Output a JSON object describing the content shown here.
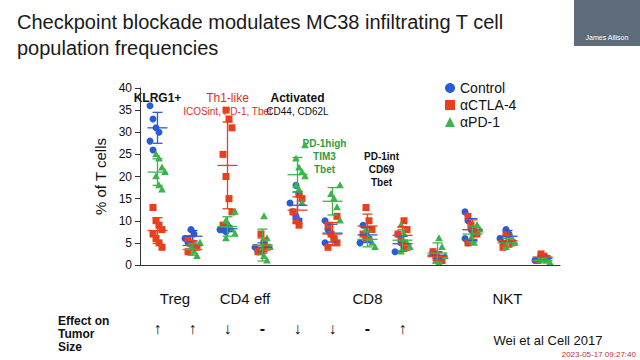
{
  "chart_data": {
    "type": "scatter",
    "title": "Checkpoint blockade modulates MC38 infiltrating T cell\npopulation frequencies",
    "y_label": "% of T cells",
    "categories": [
      null,
      null,
      null,
      null,
      null,
      null,
      null,
      null,
      null,
      null,
      null,
      null
    ],
    "ylim": [
      0,
      40
    ],
    "yticks": [
      0,
      5,
      10,
      15,
      20,
      25,
      30,
      35,
      40
    ],
    "grid": false,
    "legend": "top-right",
    "groups": [
      {
        "label": "Treg",
        "columns": [
          0,
          1
        ]
      },
      {
        "label": "CD4 eff",
        "columns": [
          2,
          3
        ]
      },
      {
        "label": "CD8",
        "columns": [
          4,
          5,
          6,
          7,
          8
        ]
      },
      {
        "label": "NKT",
        "columns": [
          9,
          10,
          11
        ]
      }
    ],
    "annotations": [
      {
        "text": "KLRG1+",
        "color": "#111111",
        "column": 0
      },
      {
        "text": "Th1-like",
        "color": "#e0301e",
        "column": 2
      },
      {
        "text": "ICOSint, PD-1, Tbet",
        "color": "#e0301e",
        "column": 2
      },
      {
        "text": "Activated",
        "color": "#111111",
        "column": 4
      },
      {
        "text": "CD44, CD62L",
        "color": "#111111",
        "column": 4
      },
      {
        "text": "PD-1high\nTIM3\nTbet",
        "color": "#2e9e3e",
        "column": 5
      },
      {
        "text": "PD-1int\nCD69\nTbet",
        "color": "#111111",
        "column": 6
      }
    ],
    "effect_label": "Effect on\nTumor\nSize",
    "effects": [
      "↑",
      "↑",
      "↓",
      "-",
      "↓",
      "↓",
      "-",
      "↑",
      null,
      null,
      null,
      null
    ],
    "citation": "Wei et al Cell 2017",
    "series": [
      {
        "name": "Control",
        "color": "#2a5bd7",
        "marker": "circle",
        "x": [
          0,
          0,
          0,
          0,
          0,
          0,
          1,
          1,
          1,
          1,
          2,
          2,
          2,
          2,
          2,
          3,
          3,
          3,
          4,
          4,
          4,
          4,
          4,
          4,
          5,
          5,
          5,
          5,
          5,
          6,
          6,
          6,
          6,
          7,
          7,
          7,
          7,
          8,
          8,
          8,
          9,
          9,
          9,
          9,
          9,
          9,
          10,
          10,
          10,
          10,
          11,
          11,
          11
        ],
        "values": [
          36,
          33,
          31,
          30,
          28,
          26,
          8,
          7,
          6,
          5,
          9,
          8.5,
          8,
          8,
          7.5,
          5,
          4,
          3,
          18,
          16,
          14,
          12,
          11,
          10,
          10,
          8,
          7,
          6,
          5,
          9,
          7,
          6,
          5,
          7,
          5,
          4,
          3,
          3,
          2,
          1.5,
          12,
          10,
          8,
          7,
          6,
          5,
          8,
          7,
          6,
          5,
          2,
          1.5,
          1
        ],
        "means": [
          31,
          6.5,
          8.2,
          4,
          13.5,
          7.2,
          6.8,
          4.8,
          2.2,
          8,
          6.5,
          1.5
        ],
        "sd": [
          3.5,
          1.3,
          0.6,
          1,
          3,
          2,
          1.7,
          1.7,
          0.8,
          2.5,
          1.3,
          0.5
        ]
      },
      {
        "name": "αCTLA-4",
        "color": "#e8401c",
        "marker": "square",
        "x": [
          0,
          0,
          0,
          0,
          0,
          0,
          0,
          0,
          1,
          1,
          1,
          1,
          1,
          2,
          2,
          2,
          2,
          2,
          2,
          2,
          2,
          3,
          3,
          3,
          3,
          3,
          4,
          4,
          4,
          4,
          4,
          5,
          5,
          5,
          5,
          5,
          5,
          6,
          6,
          6,
          6,
          6,
          7,
          7,
          7,
          7,
          7,
          7,
          8,
          8,
          8,
          8,
          9,
          9,
          9,
          9,
          9,
          10,
          10,
          10,
          10,
          11,
          11,
          11,
          11
        ],
        "values": [
          13,
          10,
          9,
          8,
          7,
          6,
          5,
          4,
          6,
          5,
          4,
          4,
          3,
          35,
          33,
          31,
          25,
          20,
          15,
          12,
          9,
          7,
          5,
          4,
          3,
          3,
          16,
          15,
          12,
          10,
          9,
          11,
          9,
          7,
          6,
          5,
          4,
          13,
          10,
          8,
          7,
          6,
          10,
          8,
          7,
          6,
          5,
          4,
          3,
          2,
          1.5,
          1,
          11,
          9,
          8,
          7,
          5,
          7,
          6,
          5,
          4,
          2.5,
          2,
          1.5,
          1
        ],
        "means": [
          7.8,
          4.4,
          22.5,
          4.4,
          12.4,
          7,
          8.8,
          6.7,
          1.9,
          8,
          5.5,
          1.8
        ],
        "sd": [
          2.9,
          1.1,
          9.8,
          1.7,
          3,
          2.6,
          2.7,
          2,
          0.9,
          2.2,
          1.3,
          0.6
        ]
      },
      {
        "name": "αPD-1",
        "color": "#3cb44b",
        "marker": "triangle",
        "x": [
          0,
          0,
          0,
          0,
          0,
          0,
          0,
          1,
          1,
          1,
          1,
          2,
          2,
          2,
          2,
          2,
          2,
          3,
          3,
          3,
          3,
          3,
          3,
          4,
          4,
          4,
          4,
          4,
          4,
          4,
          4,
          5,
          5,
          5,
          5,
          5,
          6,
          6,
          6,
          6,
          7,
          7,
          7,
          7,
          7,
          8,
          8,
          8,
          8,
          8,
          9,
          9,
          9,
          9,
          10,
          10,
          10,
          11,
          11,
          11
        ],
        "values": [
          25,
          24,
          22,
          21,
          20,
          18,
          17,
          5,
          4,
          3,
          2,
          12,
          10,
          9,
          8,
          7,
          6,
          11,
          6,
          4,
          3,
          2,
          1,
          27,
          24,
          22,
          21,
          20,
          18,
          17,
          14,
          18,
          16,
          15,
          13,
          10,
          8,
          6,
          5,
          4,
          9,
          7,
          5,
          4,
          3,
          6,
          4,
          2,
          1,
          0.5,
          9,
          8,
          6,
          5,
          6,
          5,
          4,
          1.5,
          1,
          0.5
        ],
        "means": [
          21,
          3.5,
          8.7,
          4.5,
          20.4,
          14.4,
          5.8,
          5.6,
          2.7,
          7,
          5,
          1
        ],
        "sd": [
          3,
          1.3,
          2.2,
          3.6,
          3.9,
          3.1,
          1.7,
          2.4,
          2.3,
          1.8,
          1,
          0.5
        ]
      }
    ]
  },
  "screen": {
    "speaker": "James Allison",
    "timestamp": "2023-05-17 09:27:40"
  }
}
